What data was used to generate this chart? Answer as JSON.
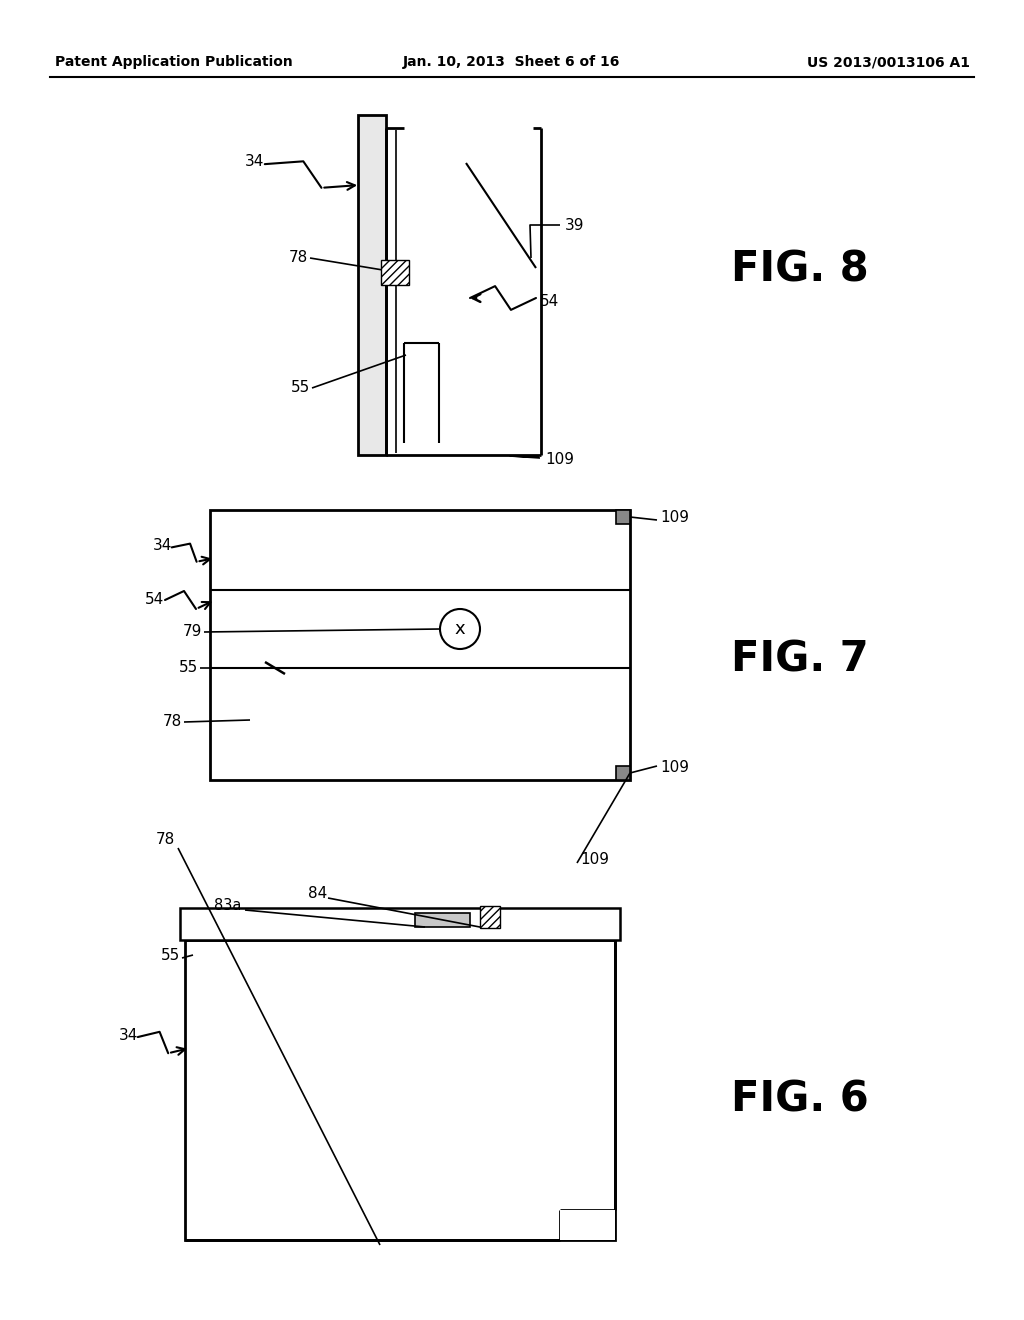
{
  "bg_color": "#ffffff",
  "header_left": "Patent Application Publication",
  "header_mid": "Jan. 10, 2013  Sheet 6 of 16",
  "header_right": "US 2013/0013106 A1",
  "fig8_label": "FIG. 8",
  "fig7_label": "FIG. 7",
  "fig6_label": "FIG. 6",
  "lc": "#000000",
  "tc": "#000000"
}
